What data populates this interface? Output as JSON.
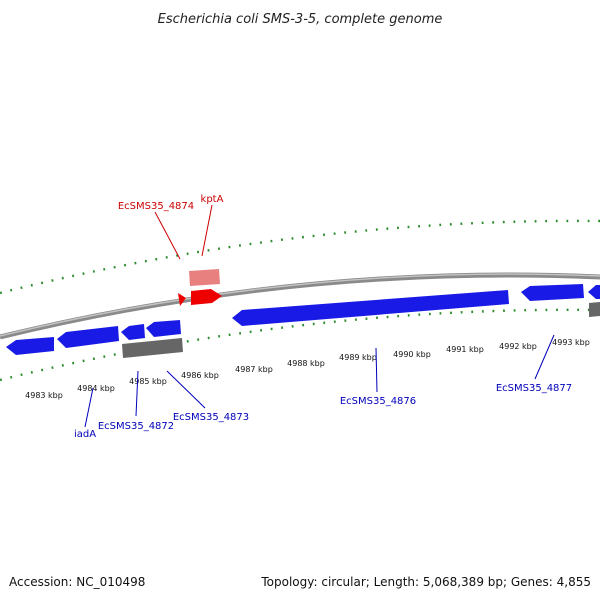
{
  "title": "Escherichia coli SMS-3-5, complete genome",
  "footer": {
    "accession": "Accession: NC_010498",
    "summary": "Topology: circular; Length: 5,068,389 bp; Genes: 4,855"
  },
  "colors": {
    "backbone": "#8a8a8a",
    "ticks": "#2e8b2e",
    "forward_gene": "#ee0000",
    "forward_rna": "#e88080",
    "reverse_gene": "#1a1ae6",
    "pseudo": "#666666",
    "forward_label": "#cc0000",
    "reverse_label": "#0000bb"
  },
  "axis": {
    "unit": "kbp",
    "ticks": [
      {
        "kbp": 4983,
        "label": "4983 kbp"
      },
      {
        "kbp": 4984,
        "label": "4984 kbp"
      },
      {
        "kbp": 4985,
        "label": "4985 kbp"
      },
      {
        "kbp": 4986,
        "label": "4986 kbp"
      },
      {
        "kbp": 4987,
        "label": "4987 kbp"
      },
      {
        "kbp": 4988,
        "label": "4988 kbp"
      },
      {
        "kbp": 4989,
        "label": "4989 kbp"
      },
      {
        "kbp": 4990,
        "label": "4990 kbp"
      },
      {
        "kbp": 4991,
        "label": "4991 kbp"
      },
      {
        "kbp": 4992,
        "label": "4992 kbp"
      },
      {
        "kbp": 4993,
        "label": "4993 kbp"
      }
    ]
  },
  "labels": {
    "ecsms35_4874": "EcSMS35_4874",
    "kpta": "kptA",
    "iada": "iadA",
    "ecsms35_4872": "EcSMS35_4872",
    "ecsms35_4873": "EcSMS35_4873",
    "ecsms35_4876": "EcSMS35_4876",
    "ecsms35_4877": "EcSMS35_4877"
  }
}
